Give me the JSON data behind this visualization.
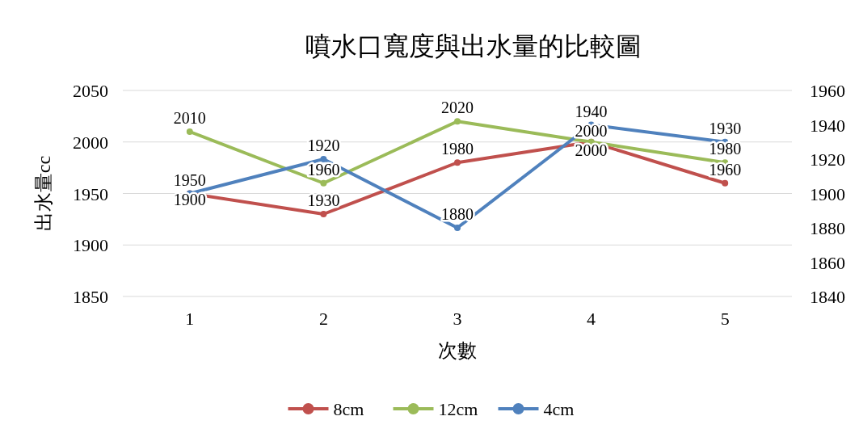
{
  "chart_data": {
    "type": "line",
    "title": "噴水口寬度與出水量的比較圖",
    "xlabel": "次數",
    "ylabel": "出水量cc",
    "categories": [
      "1",
      "2",
      "3",
      "4",
      "5"
    ],
    "series": [
      {
        "name": "8cm",
        "color": "#c0504d",
        "values": [
          1950,
          1930,
          1980,
          2000,
          1960
        ]
      },
      {
        "name": "12cm",
        "color": "#9bbb59",
        "values": [
          2010,
          1960,
          2020,
          2000,
          1980
        ]
      },
      {
        "name": "4cm",
        "color": "#4f81bd",
        "values": [
          1900,
          1920,
          1880,
          1940,
          1930
        ],
        "axis": "y2"
      }
    ],
    "ylim": [
      1850,
      2050
    ],
    "yticks": [
      1850,
      1900,
      1950,
      2000,
      2050
    ],
    "y2lim": [
      1840,
      1960
    ],
    "y2ticks": [
      1840,
      1860,
      1880,
      1900,
      1920,
      1940,
      1960
    ],
    "grid": "y",
    "legend": "bottom",
    "data_labels": true,
    "marker": "circle",
    "line_style": "solid"
  }
}
